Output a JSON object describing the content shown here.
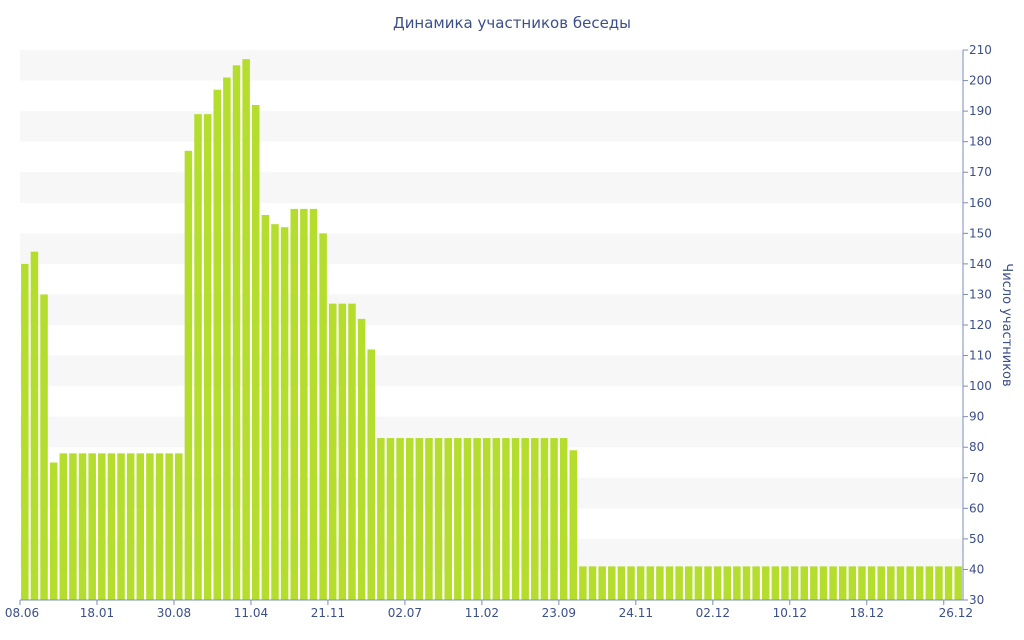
{
  "chart_data": {
    "type": "bar",
    "title": "Динамика участников беседы",
    "xlabel": "",
    "ylabel": "Число участников",
    "ylim": [
      30,
      210
    ],
    "yticks": [
      30,
      40,
      50,
      60,
      70,
      80,
      90,
      100,
      110,
      120,
      130,
      140,
      150,
      160,
      170,
      180,
      190,
      200,
      210
    ],
    "y_axis_position": "right",
    "grid": "alternating horizontal bands",
    "x_tick_labels": [
      "08.06",
      "18.01",
      "30.08",
      "11.04",
      "21.11",
      "02.07",
      "11.02",
      "23.09",
      "24.11",
      "02.12",
      "10.12",
      "18.12",
      "26.12"
    ],
    "x_tick_bar_index": [
      0,
      8,
      16,
      24,
      32,
      40,
      48,
      56,
      64,
      72,
      80,
      88,
      96
    ],
    "series": [
      {
        "values": [
          140,
          144,
          130,
          75,
          78,
          78,
          78,
          78,
          78,
          78,
          78,
          78,
          78,
          78,
          78,
          78,
          78,
          177,
          189,
          189,
          197,
          201,
          205,
          207,
          192,
          156,
          153,
          152,
          158,
          158,
          158,
          150,
          127,
          127,
          127,
          122,
          112,
          83,
          83,
          83,
          83,
          83,
          83,
          83,
          83,
          83,
          83,
          83,
          83,
          83,
          83,
          83,
          83,
          83,
          83,
          83,
          83,
          79,
          41,
          41,
          41,
          41,
          41,
          41,
          41,
          41,
          41,
          41,
          41,
          41,
          41,
          41,
          41,
          41,
          41,
          41,
          41,
          41,
          41,
          41,
          41,
          41,
          41,
          41,
          41,
          41,
          41,
          41,
          41,
          41,
          41,
          41,
          41,
          41,
          41,
          41,
          41,
          41
        ]
      }
    ]
  },
  "colors": {
    "bar": "#b5dd2e",
    "text": "#3b4f8a",
    "axis": "#7a8db8",
    "band": "#f7f7f7"
  }
}
